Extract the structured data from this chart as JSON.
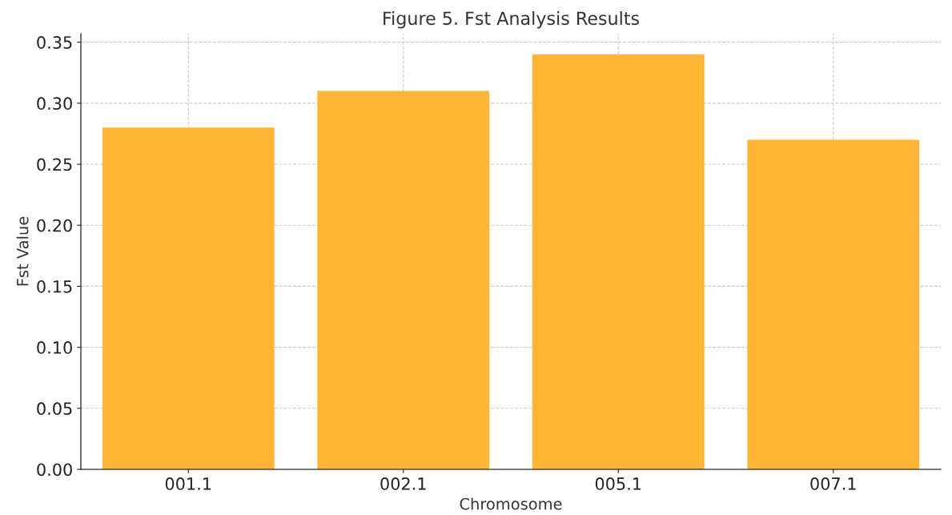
{
  "chart_data": {
    "type": "bar",
    "title": "Figure 5. Fst Analysis Results",
    "xlabel": "Chromosome",
    "ylabel": "Fst Value",
    "categories": [
      "001.1",
      "002.1",
      "005.1",
      "007.1"
    ],
    "values": [
      0.28,
      0.31,
      0.34,
      0.27
    ],
    "color": "#ffb534",
    "ylim": [
      0,
      0.357
    ],
    "yticks": [
      {
        "value": 0,
        "label": "0.00"
      },
      {
        "value": 0.05,
        "label": "0.05"
      },
      {
        "value": 0.1,
        "label": "0.10"
      },
      {
        "value": 0.15,
        "label": "0.15"
      },
      {
        "value": 0.2,
        "label": "0.20"
      },
      {
        "value": 0.25,
        "label": "0.25"
      },
      {
        "value": 0.3,
        "label": "0.30"
      },
      {
        "value": 0.35,
        "label": "0.35"
      }
    ],
    "grid": true
  }
}
